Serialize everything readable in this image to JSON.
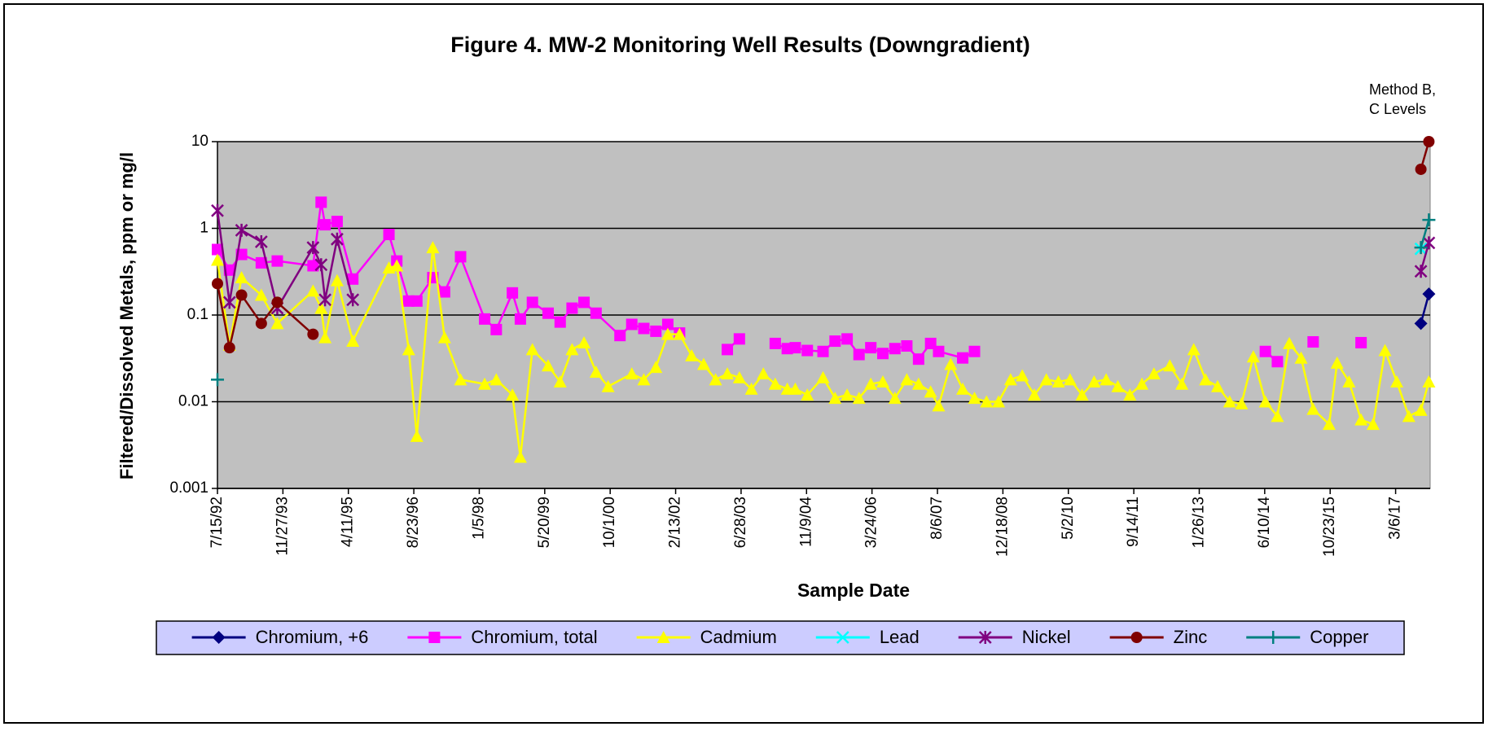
{
  "chart_data": {
    "type": "line",
    "title": "Figure 4. MW-2 Monitoring Well Results (Downgradient)",
    "x_label": "Sample Date",
    "y_label": "Filtered/Dissolved Metals, ppm or mg/l",
    "annotation": [
      "Method B,",
      "C Levels"
    ],
    "log_y": true,
    "grid": true,
    "plot_background": "#c0c0c0",
    "legend": "bottom",
    "ylim": [
      0.001,
      10
    ],
    "yticks": [
      0.001,
      0.01,
      0.1,
      1,
      10
    ],
    "xlim": [
      "7/15/92",
      "11/25/17"
    ],
    "xticks": [
      "7/15/92",
      "11/27/93",
      "4/11/95",
      "8/23/96",
      "1/5/98",
      "5/20/99",
      "10/1/00",
      "2/13/02",
      "6/28/03",
      "11/9/04",
      "3/24/06",
      "8/6/07",
      "12/18/08",
      "5/2/10",
      "9/14/11",
      "1/26/13",
      "6/10/14",
      "10/23/15",
      "3/6/17"
    ],
    "series": [
      {
        "name": "Chromium, +6",
        "color": "#000080",
        "marker": "diamond",
        "x": [
          "9/15/17",
          "11/15/17"
        ],
        "values": [
          0.08,
          0.175
        ]
      },
      {
        "name": "Chromium, total",
        "color": "#ff00ff",
        "marker": "square",
        "x": [
          "7/15/92",
          "10/15/92",
          "1/15/93",
          "6/15/93",
          "10/15/93",
          "7/15/94",
          "9/15/94",
          "10/15/94",
          "1/15/95",
          "5/15/95",
          "2/15/96",
          "4/15/96",
          "7/15/96",
          "9/15/96",
          "1/15/97",
          "4/15/97",
          "8/15/97",
          "2/15/98",
          "5/15/98",
          "9/15/98",
          "11/15/98",
          "2/15/99",
          "6/15/99",
          "9/15/99",
          "12/15/99",
          "3/15/00",
          "6/15/00",
          "12/15/00",
          "3/15/01",
          "6/15/01",
          "9/15/01",
          "12/15/01",
          "3/15/02",
          "6/15/02",
          "3/15/03",
          "6/15/03",
          "9/15/03",
          "3/15/04",
          "6/15/04",
          "8/15/04",
          "11/15/04",
          "3/15/05",
          "6/15/05",
          "9/15/05",
          "12/15/05",
          "3/15/06",
          "6/15/06",
          "9/15/06",
          "12/15/06",
          "3/15/07",
          "6/15/07",
          "8/15/07",
          "2/15/08",
          "5/15/08",
          "8/15/08",
          "6/15/14",
          "9/15/14",
          "12/15/14",
          "6/15/15",
          "10/15/15",
          "6/15/16"
        ],
        "values": [
          0.57,
          0.33,
          0.5,
          0.4,
          0.42,
          0.37,
          2.0,
          1.1,
          1.2,
          0.26,
          0.85,
          0.42,
          0.145,
          0.145,
          0.27,
          0.185,
          0.47,
          0.09,
          0.068,
          0.18,
          0.09,
          0.14,
          0.105,
          0.083,
          0.12,
          0.14,
          0.105,
          0.058,
          0.078,
          0.07,
          0.065,
          0.078,
          0.062,
          null,
          0.04,
          0.053,
          null,
          0.047,
          0.041,
          0.042,
          0.039,
          0.038,
          0.05,
          0.053,
          0.035,
          0.042,
          0.036,
          0.041,
          0.044,
          0.031,
          0.047,
          0.038,
          0.032,
          0.038,
          null,
          0.038,
          0.029,
          null,
          0.049,
          null,
          0.048
        ]
      },
      {
        "name": "Cadmium",
        "color": "#ffff00",
        "marker": "triangle",
        "x": [
          "7/15/92",
          "10/15/92",
          "1/15/93",
          "6/15/93",
          "10/15/93",
          "7/15/94",
          "9/15/94",
          "10/15/94",
          "1/15/95",
          "5/15/95",
          "2/15/96",
          "4/15/96",
          "7/15/96",
          "9/15/96",
          "1/15/97",
          "4/15/97",
          "8/15/97",
          "2/15/98",
          "5/15/98",
          "9/15/98",
          "11/15/98",
          "2/15/99",
          "6/15/99",
          "9/15/99",
          "12/15/99",
          "3/15/00",
          "6/15/00",
          "9/15/00",
          "3/15/01",
          "6/15/01",
          "9/15/01",
          "12/15/01",
          "3/15/02",
          "6/15/02",
          "9/15/02",
          "12/15/02",
          "3/15/03",
          "6/15/03",
          "9/15/03",
          "12/15/03",
          "3/15/04",
          "6/15/04",
          "8/15/04",
          "11/15/04",
          "3/15/05",
          "6/15/05",
          "9/15/05",
          "12/15/05",
          "3/15/06",
          "6/15/06",
          "9/15/06",
          "12/15/06",
          "3/15/07",
          "6/15/07",
          "8/15/07",
          "11/15/07",
          "2/15/08",
          "5/15/08",
          "8/15/08",
          "11/15/08",
          "2/15/09",
          "5/15/09",
          "8/15/09",
          "11/15/09",
          "2/15/10",
          "5/15/10",
          "8/15/10",
          "11/15/10",
          "2/15/11",
          "5/15/11",
          "8/15/11",
          "11/15/11",
          "2/15/12",
          "6/15/12",
          "9/15/12",
          "12/15/12",
          "3/15/13",
          "6/15/13",
          "9/15/13",
          "12/15/13",
          "3/15/14",
          "6/15/14",
          "9/15/14",
          "12/15/14",
          "3/15/15",
          "6/15/15",
          "10/15/15",
          "12/15/15",
          "3/15/16",
          "6/15/16",
          "9/15/16",
          "12/15/16",
          "3/15/17",
          "6/15/17",
          "9/15/17",
          "11/15/17"
        ],
        "values": [
          0.43,
          0.045,
          0.27,
          0.17,
          0.08,
          0.19,
          0.12,
          0.055,
          0.25,
          0.05,
          0.35,
          0.37,
          0.04,
          0.004,
          0.6,
          0.055,
          0.018,
          0.016,
          0.018,
          0.012,
          0.0023,
          0.04,
          0.026,
          0.017,
          0.04,
          0.048,
          0.022,
          0.015,
          0.021,
          0.018,
          0.025,
          0.06,
          0.06,
          0.034,
          0.027,
          0.018,
          0.021,
          0.019,
          0.014,
          0.021,
          0.016,
          0.014,
          0.014,
          0.012,
          0.019,
          0.011,
          0.012,
          0.011,
          0.016,
          0.017,
          0.011,
          0.018,
          0.016,
          0.013,
          0.009,
          0.027,
          0.014,
          0.011,
          0.01,
          0.01,
          0.018,
          0.02,
          0.012,
          0.018,
          0.017,
          0.018,
          0.012,
          0.017,
          0.018,
          0.015,
          0.012,
          0.016,
          0.021,
          0.026,
          0.016,
          0.04,
          0.018,
          0.015,
          0.01,
          0.0095,
          0.033,
          0.01,
          0.0068,
          0.047,
          0.032,
          0.0082,
          0.0055,
          0.028,
          0.017,
          0.0062,
          0.0055,
          0.039,
          0.017,
          0.0068,
          0.008,
          0.017
        ]
      },
      {
        "name": "Lead",
        "color": "#00ffff",
        "marker": "x",
        "x": [
          "9/15/17"
        ],
        "values": [
          0.58
        ]
      },
      {
        "name": "Nickel",
        "color": "#800080",
        "marker": "star",
        "x": [
          "7/15/92",
          "10/15/92",
          "1/15/93",
          "6/15/93",
          "10/15/93",
          "7/15/94",
          "9/15/94",
          "10/15/94",
          "1/15/95",
          "5/15/95",
          "8/15/95",
          "9/15/17",
          "11/15/17"
        ],
        "values": [
          1.6,
          0.14,
          0.95,
          0.7,
          0.12,
          0.6,
          0.38,
          0.15,
          0.75,
          0.15,
          null,
          0.32,
          0.68
        ]
      },
      {
        "name": "Zinc",
        "color": "#800000",
        "marker": "circle",
        "x": [
          "7/15/92",
          "10/15/92",
          "1/15/93",
          "6/15/93",
          "10/15/93",
          "7/15/94",
          "9/15/94",
          "9/15/17",
          "11/15/17"
        ],
        "values": [
          0.23,
          0.042,
          0.17,
          0.08,
          0.14,
          0.06,
          null,
          4.8,
          10
        ]
      },
      {
        "name": "Copper",
        "color": "#008080",
        "marker": "plus",
        "x": [
          "7/15/92",
          "10/15/92",
          "9/15/17",
          "11/15/17"
        ],
        "values": [
          0.018,
          null,
          0.6,
          1.25
        ]
      }
    ]
  }
}
